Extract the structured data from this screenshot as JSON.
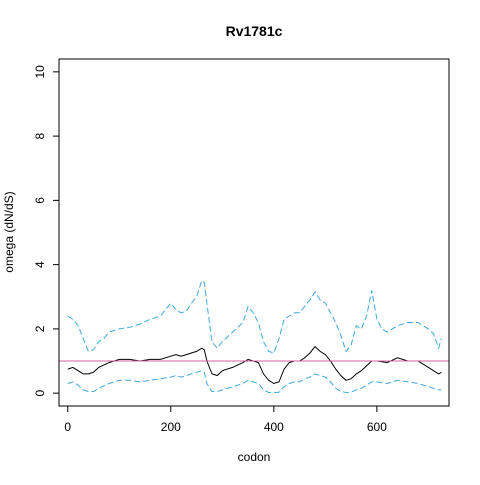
{
  "chart_data": {
    "type": "line",
    "title": "Rv1781c",
    "xlabel": "codon",
    "ylabel": "omega (dN/dS)",
    "xlim": [
      -17,
      740
    ],
    "ylim": [
      -0.4,
      10.4
    ],
    "x_ticks": [
      0,
      200,
      400,
      600
    ],
    "y_ticks": [
      0,
      2,
      4,
      6,
      8,
      10
    ],
    "x_tick_labels": [
      "0",
      "200",
      "400",
      "600"
    ],
    "y_tick_labels": [
      "0",
      "2",
      "4",
      "6",
      "8",
      "10"
    ],
    "grid": false,
    "legend": "none",
    "reference_line": {
      "y": 1,
      "color": "#cc6699"
    },
    "series": [
      {
        "role": "upper-bound",
        "color": "#3fa9dd",
        "dash": true,
        "x": [
          0,
          10,
          20,
          30,
          40,
          50,
          60,
          70,
          80,
          90,
          100,
          120,
          140,
          160,
          180,
          200,
          210,
          220,
          230,
          240,
          250,
          260,
          265,
          270,
          280,
          290,
          300,
          320,
          340,
          350,
          360,
          370,
          380,
          390,
          400,
          410,
          420,
          430,
          440,
          450,
          460,
          470,
          480,
          490,
          500,
          510,
          520,
          530,
          540,
          550,
          560,
          570,
          580,
          590,
          600,
          610,
          620,
          640,
          660,
          680,
          700,
          710,
          720,
          725
        ],
        "y": [
          2.4,
          2.3,
          2.1,
          1.7,
          1.3,
          1.35,
          1.6,
          1.7,
          1.9,
          1.95,
          2.0,
          2.05,
          2.15,
          2.3,
          2.4,
          2.8,
          2.6,
          2.5,
          2.55,
          2.8,
          3.0,
          3.5,
          3.45,
          2.8,
          1.6,
          1.4,
          1.6,
          1.9,
          2.2,
          2.7,
          2.5,
          2.2,
          1.6,
          1.3,
          1.25,
          1.7,
          2.3,
          2.4,
          2.5,
          2.5,
          2.7,
          2.9,
          3.15,
          2.9,
          2.8,
          2.5,
          2.2,
          1.8,
          1.3,
          1.5,
          2.1,
          2.0,
          2.4,
          3.2,
          2.3,
          2.0,
          1.9,
          2.1,
          2.2,
          2.2,
          2.0,
          1.85,
          1.4,
          1.7
        ]
      },
      {
        "role": "estimate",
        "color": "#000000",
        "dash": false,
        "x": [
          0,
          10,
          20,
          30,
          40,
          50,
          60,
          80,
          100,
          120,
          140,
          160,
          180,
          200,
          210,
          220,
          230,
          240,
          250,
          260,
          265,
          270,
          280,
          290,
          300,
          320,
          340,
          350,
          360,
          370,
          380,
          390,
          400,
          410,
          420,
          430,
          440,
          450,
          460,
          470,
          480,
          490,
          500,
          510,
          520,
          530,
          540,
          550,
          560,
          570,
          580,
          590,
          600,
          620,
          640,
          660,
          680,
          700,
          710,
          720,
          725
        ],
        "y": [
          0.75,
          0.8,
          0.7,
          0.6,
          0.6,
          0.65,
          0.8,
          0.95,
          1.05,
          1.05,
          1.0,
          1.05,
          1.05,
          1.15,
          1.2,
          1.15,
          1.2,
          1.25,
          1.3,
          1.4,
          1.35,
          1.0,
          0.6,
          0.55,
          0.7,
          0.8,
          0.95,
          1.05,
          1.0,
          0.95,
          0.6,
          0.4,
          0.3,
          0.35,
          0.75,
          0.95,
          1.0,
          1.0,
          1.1,
          1.25,
          1.45,
          1.3,
          1.2,
          1.0,
          0.75,
          0.55,
          0.4,
          0.45,
          0.6,
          0.7,
          0.85,
          1.0,
          1.0,
          0.95,
          1.1,
          1.0,
          1.0,
          0.8,
          0.7,
          0.6,
          0.65
        ]
      },
      {
        "role": "lower-bound",
        "color": "#3fa9dd",
        "dash": true,
        "x": [
          0,
          10,
          20,
          30,
          40,
          50,
          60,
          80,
          100,
          120,
          140,
          160,
          180,
          200,
          210,
          220,
          230,
          240,
          250,
          260,
          265,
          270,
          280,
          290,
          300,
          320,
          340,
          350,
          360,
          370,
          380,
          390,
          400,
          410,
          420,
          430,
          440,
          450,
          460,
          470,
          480,
          490,
          500,
          510,
          520,
          530,
          540,
          550,
          560,
          570,
          580,
          590,
          600,
          620,
          640,
          660,
          680,
          700,
          710,
          720,
          725
        ],
        "y": [
          0.3,
          0.35,
          0.25,
          0.1,
          0.05,
          0.05,
          0.15,
          0.3,
          0.4,
          0.4,
          0.35,
          0.4,
          0.45,
          0.5,
          0.55,
          0.5,
          0.55,
          0.6,
          0.65,
          0.7,
          0.65,
          0.3,
          0.05,
          0.05,
          0.1,
          0.2,
          0.3,
          0.4,
          0.35,
          0.3,
          0.1,
          0.02,
          0.02,
          0.03,
          0.2,
          0.3,
          0.35,
          0.35,
          0.45,
          0.5,
          0.6,
          0.55,
          0.5,
          0.35,
          0.15,
          0.05,
          0.02,
          0.03,
          0.1,
          0.15,
          0.25,
          0.35,
          0.35,
          0.3,
          0.4,
          0.35,
          0.3,
          0.2,
          0.15,
          0.1,
          0.1
        ]
      }
    ]
  }
}
